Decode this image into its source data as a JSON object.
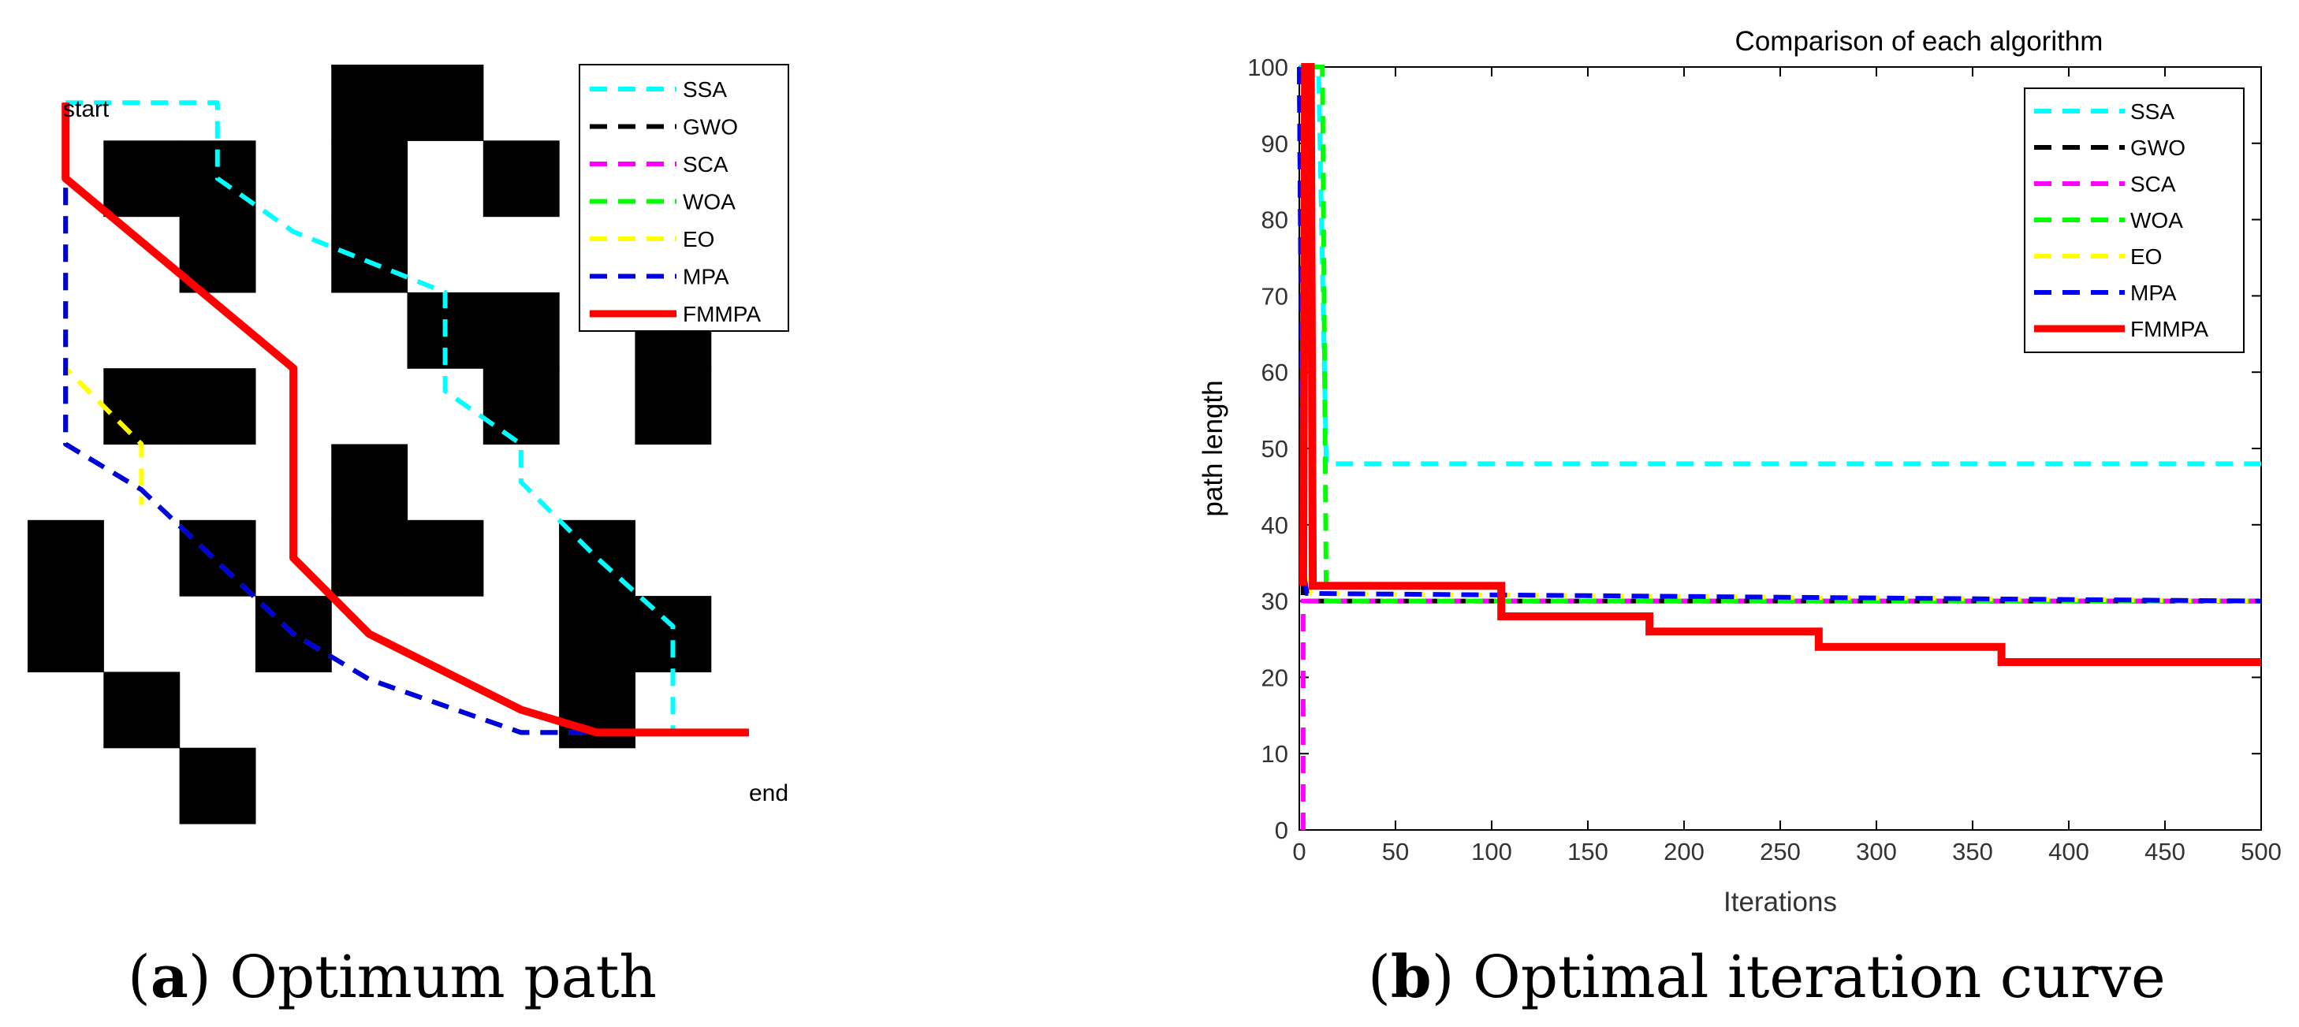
{
  "chart_data": [
    {
      "type": "grid-path",
      "panel_label": "a",
      "caption": "Optimum path",
      "grid_size": [
        10,
        10
      ],
      "start_label": "start",
      "end_label": "end",
      "obstacles": [
        [
          4,
          0
        ],
        [
          5,
          0
        ],
        [
          1,
          1
        ],
        [
          2,
          1
        ],
        [
          4,
          1
        ],
        [
          6,
          1
        ],
        [
          2,
          2
        ],
        [
          4,
          2
        ],
        [
          5,
          3
        ],
        [
          6,
          3
        ],
        [
          8,
          3
        ],
        [
          1,
          4
        ],
        [
          2,
          4
        ],
        [
          6,
          4
        ],
        [
          8,
          4
        ],
        [
          4,
          5
        ],
        [
          0,
          6
        ],
        [
          2,
          6
        ],
        [
          4,
          6
        ],
        [
          5,
          6
        ],
        [
          7,
          6
        ],
        [
          0,
          7
        ],
        [
          3,
          7
        ],
        [
          7,
          7
        ],
        [
          8,
          7
        ],
        [
          1,
          8
        ],
        [
          7,
          8
        ],
        [
          2,
          9
        ]
      ],
      "legend": [
        "SSA",
        "GWO",
        "SCA",
        "WOA",
        "EO",
        "MPA",
        "FMMPA"
      ],
      "series": [
        {
          "name": "SSA",
          "color": "#00ffff",
          "dashed": true,
          "points": [
            [
              0.5,
              0.5
            ],
            [
              1,
              0.5
            ],
            [
              2.5,
              0.5
            ],
            [
              2.5,
              1.5
            ],
            [
              3.5,
              2.2
            ],
            [
              5.5,
              3.0
            ],
            [
              5.5,
              4.3
            ],
            [
              6.5,
              5.0
            ],
            [
              6.5,
              5.5
            ],
            [
              7.5,
              6.5
            ],
            [
              8.5,
              7.4
            ],
            [
              8.5,
              8.8
            ]
          ]
        },
        {
          "name": "GWO",
          "color": "#000000",
          "dashed": true,
          "points": [
            [
              0.5,
              0.5
            ],
            [
              0.5,
              1.5
            ],
            [
              0.5,
              5.0
            ],
            [
              1.5,
              5.6
            ],
            [
              3.5,
              7.5
            ],
            [
              4.5,
              8.1
            ],
            [
              6.5,
              8.8
            ],
            [
              9.5,
              8.8
            ]
          ]
        },
        {
          "name": "SCA",
          "color": "#ff00ff",
          "dashed": true,
          "points": [
            [
              0.5,
              0.5
            ],
            [
              0.5,
              1.5
            ],
            [
              0.5,
              5.0
            ],
            [
              1.5,
              5.6
            ],
            [
              3.5,
              7.5
            ],
            [
              4.5,
              8.1
            ],
            [
              6.5,
              8.8
            ],
            [
              9.5,
              8.8
            ]
          ]
        },
        {
          "name": "WOA",
          "color": "#00ff00",
          "dashed": true,
          "points": [
            [
              0.5,
              0.5
            ],
            [
              0.5,
              1.5
            ],
            [
              0.5,
              5.0
            ],
            [
              1.5,
              5.6
            ],
            [
              3.5,
              7.5
            ],
            [
              4.5,
              8.1
            ],
            [
              6.5,
              8.8
            ],
            [
              9.5,
              8.8
            ]
          ]
        },
        {
          "name": "EO",
          "color": "#ffff00",
          "dashed": true,
          "points": [
            [
              0.5,
              0.5
            ],
            [
              0.5,
              1.5
            ],
            [
              0.5,
              4.0
            ],
            [
              1.5,
              5.0
            ],
            [
              1.5,
              5.8
            ]
          ]
        },
        {
          "name": "MPA",
          "color": "#0000dd",
          "dashed": true,
          "points": [
            [
              0.5,
              0.5
            ],
            [
              0.5,
              1.5
            ],
            [
              0.5,
              5.0
            ],
            [
              1.5,
              5.6
            ],
            [
              3.5,
              7.5
            ],
            [
              4.5,
              8.1
            ],
            [
              6.5,
              8.8
            ],
            [
              9.5,
              8.8
            ]
          ]
        },
        {
          "name": "FMMPA",
          "color": "#ff0000",
          "dashed": false,
          "points": [
            [
              0.5,
              0.5
            ],
            [
              0.5,
              1.5
            ],
            [
              3.5,
              4.0
            ],
            [
              3.5,
              6.5
            ],
            [
              4.5,
              7.5
            ],
            [
              6.5,
              8.5
            ],
            [
              7.5,
              8.8
            ],
            [
              9.5,
              8.8
            ]
          ]
        }
      ]
    },
    {
      "type": "line",
      "panel_label": "b",
      "caption": "Optimal iteration curve",
      "title": "Comparison of each algorithm",
      "xlabel": "Iterations",
      "ylabel": "path length",
      "xlim": [
        0,
        500
      ],
      "ylim": [
        0,
        100
      ],
      "xticks": [
        0,
        50,
        100,
        150,
        200,
        250,
        300,
        350,
        400,
        450,
        500
      ],
      "yticks": [
        0,
        10,
        20,
        30,
        40,
        50,
        60,
        70,
        80,
        90,
        100
      ],
      "legend_position": "top-right",
      "series": [
        {
          "name": "SSA",
          "color": "#00ffff",
          "dashed": true,
          "points": [
            [
              0,
              100
            ],
            [
              10,
              100
            ],
            [
              14,
              48
            ],
            [
              500,
              48
            ]
          ]
        },
        {
          "name": "GWO",
          "color": "#000000",
          "dashed": true,
          "points": [
            [
              0,
              100
            ],
            [
              2,
              30
            ],
            [
              500,
              30
            ]
          ]
        },
        {
          "name": "SCA",
          "color": "#ff00ff",
          "dashed": true,
          "points": [
            [
              2,
              0
            ],
            [
              2,
              30
            ],
            [
              500,
              30
            ]
          ]
        },
        {
          "name": "WOA",
          "color": "#00ff00",
          "dashed": true,
          "points": [
            [
              8,
              100
            ],
            [
              12,
              100
            ],
            [
              14,
              30
            ],
            [
              500,
              30
            ]
          ]
        },
        {
          "name": "EO",
          "color": "#ffff00",
          "dashed": true,
          "points": [
            [
              0,
              100
            ],
            [
              3,
              33
            ],
            [
              6,
              31
            ],
            [
              500,
              30
            ]
          ]
        },
        {
          "name": "MPA",
          "color": "#0000ff",
          "dashed": true,
          "points": [
            [
              0,
              100
            ],
            [
              2,
              34
            ],
            [
              4,
              31
            ],
            [
              500,
              30
            ]
          ]
        },
        {
          "name": "FMMPA",
          "color": "#ff0000",
          "dashed": false,
          "points": [
            [
              2,
              32
            ],
            [
              3,
              100
            ],
            [
              6,
              100
            ],
            [
              7,
              32
            ],
            [
              105,
              32
            ],
            [
              105,
              28
            ],
            [
              182,
              28
            ],
            [
              182,
              26
            ],
            [
              270,
              26
            ],
            [
              270,
              24
            ],
            [
              365,
              24
            ],
            [
              365,
              22
            ],
            [
              500,
              22
            ]
          ]
        }
      ]
    }
  ]
}
